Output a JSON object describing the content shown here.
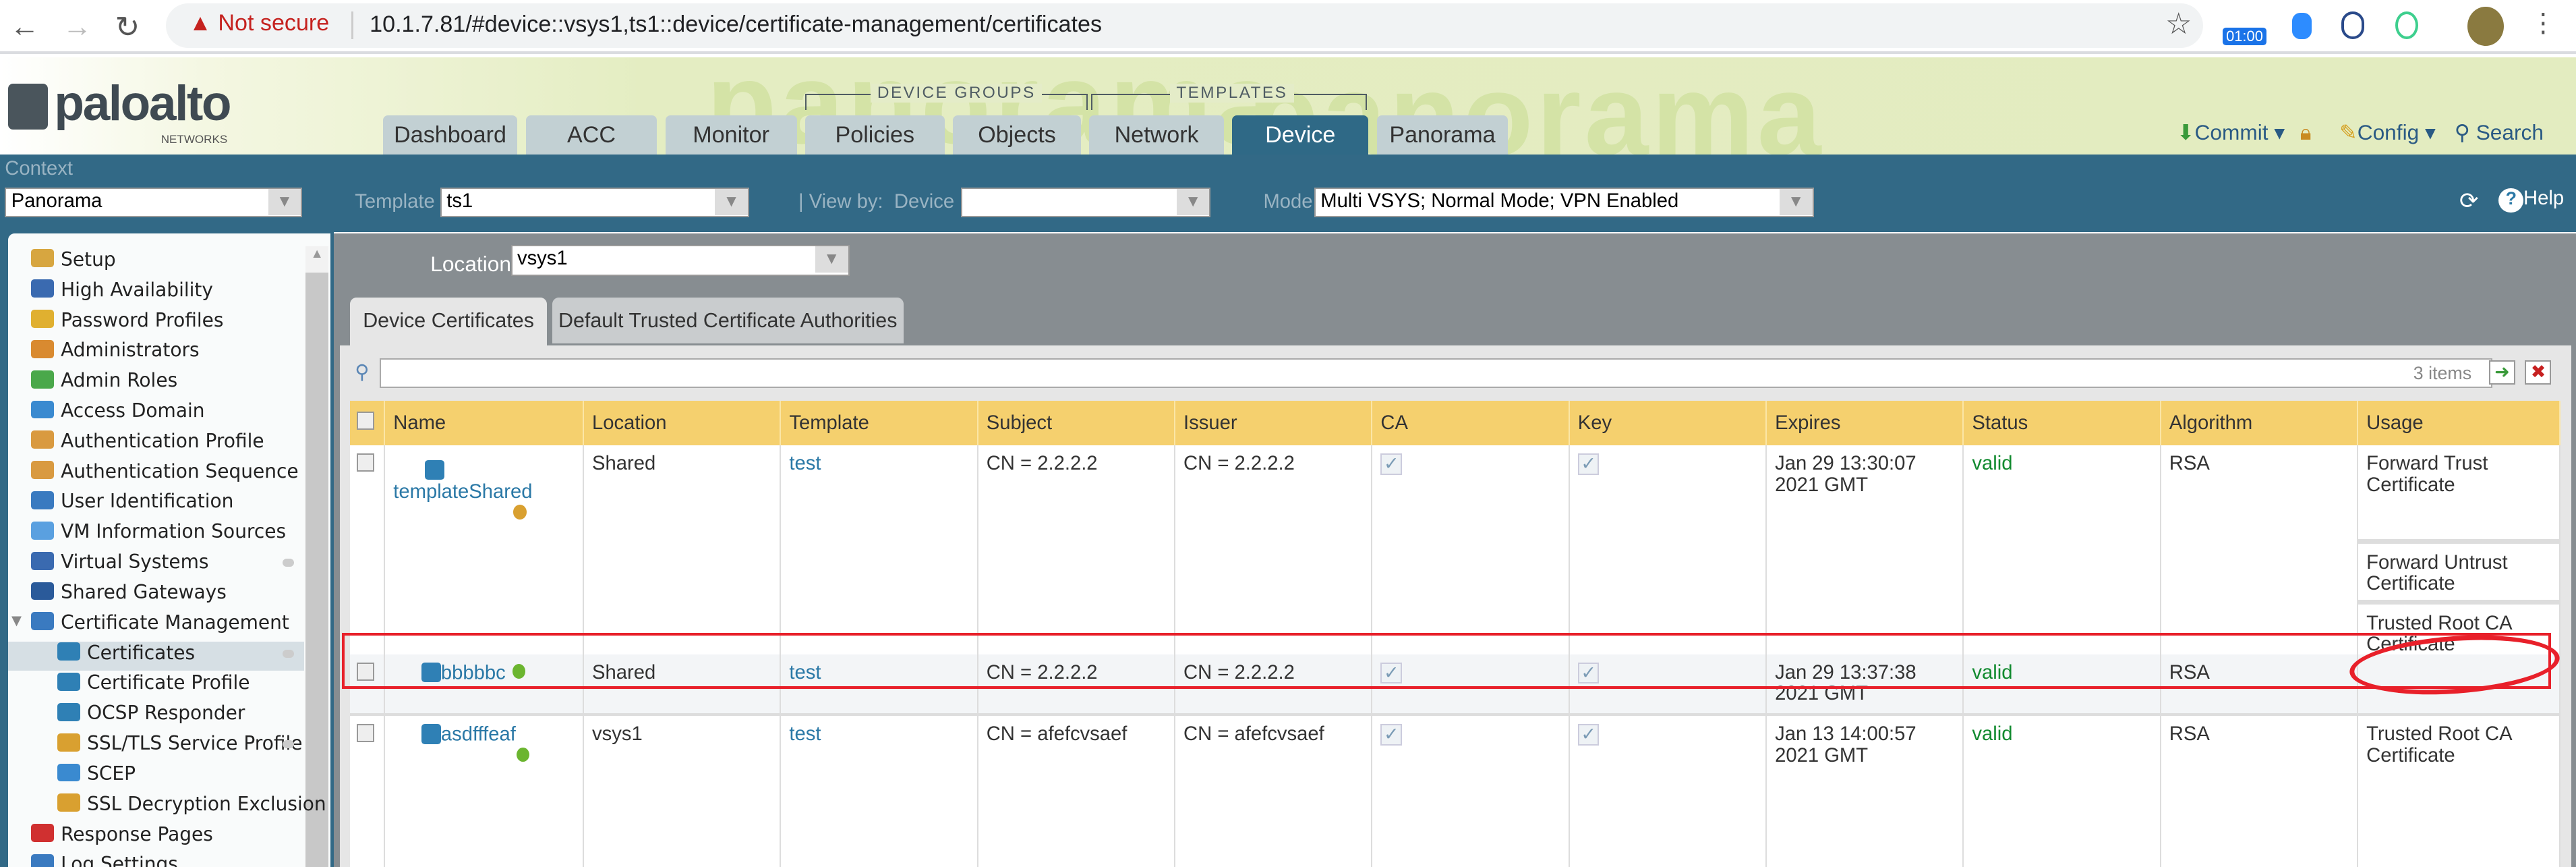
{
  "browser": {
    "security": "Not secure",
    "url": "10.1.7.81/#device::vsys1,ts1::device/certificate-management/certificates",
    "timer_badge": "01:00"
  },
  "header": {
    "logo": "paloalto",
    "logo_sub": "NETWORKS",
    "watermark": "panorama",
    "group_device": "DEVICE GROUPS",
    "group_templates": "TEMPLATES",
    "tabs": [
      {
        "label": "Dashboard"
      },
      {
        "label": "ACC"
      },
      {
        "label": "Monitor"
      },
      {
        "label": "Policies"
      },
      {
        "label": "Objects"
      },
      {
        "label": "Network"
      },
      {
        "label": "Device",
        "active": true
      },
      {
        "label": "Panorama"
      }
    ],
    "commit": "Commit",
    "config": "Config",
    "search": "Search"
  },
  "context": {
    "label": "Context",
    "value": "Panorama",
    "template_label": "Template",
    "template_value": "ts1",
    "viewby_label": "| View by:  Device",
    "viewby_value": "",
    "mode_label": "Mode",
    "mode_value": "Multi VSYS; Normal Mode; VPN Enabled",
    "help": "Help"
  },
  "sidebar": {
    "items": [
      {
        "label": "Setup",
        "icon": "setup-icon"
      },
      {
        "label": "High Availability"
      },
      {
        "label": "Password Profiles"
      },
      {
        "label": "Administrators"
      },
      {
        "label": "Admin Roles"
      },
      {
        "label": "Access Domain"
      },
      {
        "label": "Authentication Profile"
      },
      {
        "label": "Authentication Sequence"
      },
      {
        "label": "User Identification"
      },
      {
        "label": "VM Information Sources"
      },
      {
        "label": "Virtual Systems"
      },
      {
        "label": "Shared Gateways"
      },
      {
        "label": "Certificate Management",
        "expanded": true
      },
      {
        "label": "Certificates",
        "selected": true
      },
      {
        "label": "Certificate Profile"
      },
      {
        "label": "OCSP Responder"
      },
      {
        "label": "SSL/TLS Service Profile"
      },
      {
        "label": "SCEP"
      },
      {
        "label": "SSL Decryption Exclusion"
      },
      {
        "label": "Response Pages"
      },
      {
        "label": "Log Settings"
      }
    ]
  },
  "main": {
    "location_label": "Location",
    "location_value": "vsys1",
    "tabs": [
      {
        "label": "Device Certificates",
        "active": true
      },
      {
        "label": "Default Trusted Certificate Authorities"
      }
    ],
    "filter_placeholder": "",
    "items_count": "3 items",
    "columns": [
      "Name",
      "Location",
      "Template",
      "Subject",
      "Issuer",
      "CA",
      "Key",
      "Expires",
      "Status",
      "Algorithm",
      "Usage"
    ],
    "rows": [
      {
        "name": "templateShared",
        "location": "Shared",
        "template": "test",
        "subject": "CN = 2.2.2.2",
        "issuer": "CN = 2.2.2.2",
        "ca": true,
        "key": true,
        "expires": "Jan 29 13:30:07 2021 GMT",
        "status": "valid",
        "algorithm": "RSA",
        "usage": [
          "Forward Trust Certificate",
          "Forward Untrust Certificate",
          "Trusted Root CA Certificate"
        ]
      },
      {
        "name": "bbbbbc",
        "location": "Shared",
        "template": "test",
        "subject": "CN = 2.2.2.2",
        "issuer": "CN = 2.2.2.2",
        "ca": true,
        "key": true,
        "expires": "Jan 29 13:37:38 2021 GMT",
        "status": "valid",
        "algorithm": "RSA",
        "usage": []
      },
      {
        "name": "asdfffeaf",
        "location": "vsys1",
        "template": "test",
        "subject": "CN = afefcvsaef",
        "issuer": "CN = afefcvsaef",
        "ca": true,
        "key": true,
        "expires": "Jan 13 14:00:57 2021 GMT",
        "status": "valid",
        "algorithm": "RSA",
        "usage": [
          "Trusted Root CA Certificate"
        ]
      }
    ]
  },
  "colors": {
    "context_bar": "#326986",
    "header_row": "#f5d06e",
    "annotation": "#e8202a",
    "status_valid": "#118a2f"
  }
}
